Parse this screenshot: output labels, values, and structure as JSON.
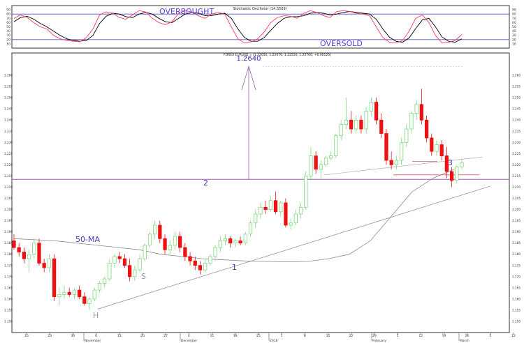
{
  "stochastic": {
    "title": "Stochastic Oscillator (14.5509)",
    "overbought_label": "OVERBOUGHT",
    "oversold_label": "OVERSOLD",
    "ticks": [
      "90",
      "80",
      "70",
      "60",
      "50",
      "40",
      "30",
      "20",
      "10"
    ],
    "overbought_level": 80,
    "oversold_level": 20,
    "colors": {
      "k": "#ff3b5c",
      "d": "#000000",
      "levels": "#5a4fd6",
      "label": "#5a3fd6"
    },
    "k_values": [
      70,
      78,
      72,
      60,
      50,
      45,
      30,
      22,
      18,
      16,
      15,
      25,
      45,
      78,
      85,
      82,
      72,
      68,
      78,
      88,
      85,
      70,
      60,
      55,
      62,
      82,
      88,
      85,
      76,
      70,
      80,
      84,
      80,
      50,
      22,
      12,
      15,
      22,
      38,
      60,
      72,
      76,
      75,
      70,
      82,
      88,
      84,
      76,
      72,
      86,
      88,
      86,
      82,
      80,
      76,
      50,
      25,
      14,
      12,
      18,
      40,
      70,
      78,
      60,
      30,
      12,
      14,
      18,
      32
    ],
    "d_values": [
      62,
      72,
      75,
      68,
      58,
      50,
      40,
      30,
      22,
      18,
      16,
      18,
      30,
      58,
      75,
      82,
      80,
      74,
      72,
      80,
      84,
      80,
      70,
      62,
      60,
      70,
      80,
      84,
      82,
      76,
      76,
      80,
      82,
      70,
      45,
      25,
      16,
      16,
      25,
      42,
      58,
      70,
      74,
      74,
      76,
      82,
      84,
      82,
      78,
      80,
      84,
      86,
      84,
      82,
      80,
      68,
      45,
      26,
      16,
      14,
      24,
      46,
      66,
      70,
      50,
      26,
      16,
      14,
      22
    ]
  },
  "main": {
    "title": "FOREX EURUSD = (1.22050, 1.22070, 1.22550, 1.22760, +0.00120)",
    "ylim": [
      1.145,
      1.27
    ],
    "y_ticks": [
      "1.260",
      "1.255",
      "1.250",
      "1.245",
      "1.240",
      "1.235",
      "1.230",
      "1.225",
      "1.220",
      "1.215",
      "1.210",
      "1.205",
      "1.200",
      "1.195",
      "1.190",
      "1.185",
      "1.180",
      "1.175",
      "1.170",
      "1.165",
      "1.160",
      "1.155",
      "1.150"
    ],
    "x_ticks": [
      "16",
      "23",
      "30",
      "6",
      "13",
      "20",
      "27",
      "4",
      "11",
      "18",
      "25",
      "1",
      "8",
      "15",
      "22",
      "29",
      "5",
      "12",
      "19",
      "26",
      "5",
      "12"
    ],
    "month_labels": [
      "November",
      "December",
      "2018",
      "February",
      "March"
    ],
    "annotations": {
      "target_price": "1.2640",
      "label_1": "1",
      "label_2": "2",
      "label_3": "3",
      "label_s": "S",
      "label_h": "H",
      "ma_label": "50-MA"
    },
    "colors": {
      "up": "#7ed87e",
      "down": "#ee1111",
      "annotation": "#4433bb",
      "trend": "#999999",
      "ma": "#8a8a8a",
      "grid_line": "#9a5fa8",
      "red_line": "#e85060"
    },
    "candles": [
      {
        "o": 1.186,
        "h": 1.189,
        "l": 1.182,
        "c": 1.183
      },
      {
        "o": 1.183,
        "h": 1.185,
        "l": 1.179,
        "c": 1.181
      },
      {
        "o": 1.181,
        "h": 1.183,
        "l": 1.176,
        "c": 1.178
      },
      {
        "o": 1.178,
        "h": 1.182,
        "l": 1.172,
        "c": 1.18
      },
      {
        "o": 1.18,
        "h": 1.187,
        "l": 1.178,
        "c": 1.185
      },
      {
        "o": 1.185,
        "h": 1.187,
        "l": 1.175,
        "c": 1.176
      },
      {
        "o": 1.176,
        "h": 1.178,
        "l": 1.172,
        "c": 1.174
      },
      {
        "o": 1.174,
        "h": 1.18,
        "l": 1.172,
        "c": 1.178
      },
      {
        "o": 1.178,
        "h": 1.18,
        "l": 1.159,
        "c": 1.161
      },
      {
        "o": 1.161,
        "h": 1.165,
        "l": 1.157,
        "c": 1.162
      },
      {
        "o": 1.162,
        "h": 1.166,
        "l": 1.16,
        "c": 1.163
      },
      {
        "o": 1.163,
        "h": 1.165,
        "l": 1.161,
        "c": 1.162
      },
      {
        "o": 1.162,
        "h": 1.165,
        "l": 1.16,
        "c": 1.164
      },
      {
        "o": 1.164,
        "h": 1.166,
        "l": 1.16,
        "c": 1.161
      },
      {
        "o": 1.161,
        "h": 1.163,
        "l": 1.157,
        "c": 1.158
      },
      {
        "o": 1.158,
        "h": 1.161,
        "l": 1.155,
        "c": 1.16
      },
      {
        "o": 1.16,
        "h": 1.165,
        "l": 1.159,
        "c": 1.164
      },
      {
        "o": 1.164,
        "h": 1.168,
        "l": 1.163,
        "c": 1.167
      },
      {
        "o": 1.167,
        "h": 1.17,
        "l": 1.165,
        "c": 1.169
      },
      {
        "o": 1.169,
        "h": 1.178,
        "l": 1.168,
        "c": 1.176
      },
      {
        "o": 1.176,
        "h": 1.18,
        "l": 1.174,
        "c": 1.179
      },
      {
        "o": 1.179,
        "h": 1.181,
        "l": 1.176,
        "c": 1.178
      },
      {
        "o": 1.178,
        "h": 1.18,
        "l": 1.174,
        "c": 1.175
      },
      {
        "o": 1.175,
        "h": 1.178,
        "l": 1.168,
        "c": 1.17
      },
      {
        "o": 1.17,
        "h": 1.175,
        "l": 1.168,
        "c": 1.173
      },
      {
        "o": 1.173,
        "h": 1.18,
        "l": 1.172,
        "c": 1.178
      },
      {
        "o": 1.178,
        "h": 1.185,
        "l": 1.177,
        "c": 1.184
      },
      {
        "o": 1.184,
        "h": 1.19,
        "l": 1.183,
        "c": 1.189
      },
      {
        "o": 1.189,
        "h": 1.195,
        "l": 1.187,
        "c": 1.193
      },
      {
        "o": 1.193,
        "h": 1.195,
        "l": 1.185,
        "c": 1.187
      },
      {
        "o": 1.187,
        "h": 1.189,
        "l": 1.18,
        "c": 1.182
      },
      {
        "o": 1.182,
        "h": 1.186,
        "l": 1.18,
        "c": 1.184
      },
      {
        "o": 1.184,
        "h": 1.19,
        "l": 1.182,
        "c": 1.188
      },
      {
        "o": 1.188,
        "h": 1.19,
        "l": 1.181,
        "c": 1.183
      },
      {
        "o": 1.183,
        "h": 1.185,
        "l": 1.177,
        "c": 1.179
      },
      {
        "o": 1.179,
        "h": 1.181,
        "l": 1.175,
        "c": 1.177
      },
      {
        "o": 1.177,
        "h": 1.179,
        "l": 1.173,
        "c": 1.175
      },
      {
        "o": 1.175,
        "h": 1.177,
        "l": 1.171,
        "c": 1.173
      },
      {
        "o": 1.173,
        "h": 1.178,
        "l": 1.172,
        "c": 1.176
      },
      {
        "o": 1.176,
        "h": 1.18,
        "l": 1.175,
        "c": 1.179
      },
      {
        "o": 1.179,
        "h": 1.184,
        "l": 1.177,
        "c": 1.183
      },
      {
        "o": 1.183,
        "h": 1.188,
        "l": 1.181,
        "c": 1.186
      },
      {
        "o": 1.186,
        "h": 1.189,
        "l": 1.184,
        "c": 1.187
      },
      {
        "o": 1.187,
        "h": 1.188,
        "l": 1.183,
        "c": 1.185
      },
      {
        "o": 1.185,
        "h": 1.187,
        "l": 1.183,
        "c": 1.186
      },
      {
        "o": 1.186,
        "h": 1.188,
        "l": 1.184,
        "c": 1.185
      },
      {
        "o": 1.185,
        "h": 1.19,
        "l": 1.184,
        "c": 1.189
      },
      {
        "o": 1.189,
        "h": 1.195,
        "l": 1.188,
        "c": 1.194
      },
      {
        "o": 1.194,
        "h": 1.2,
        "l": 1.192,
        "c": 1.198
      },
      {
        "o": 1.198,
        "h": 1.203,
        "l": 1.196,
        "c": 1.201
      },
      {
        "o": 1.201,
        "h": 1.204,
        "l": 1.198,
        "c": 1.2
      },
      {
        "o": 1.2,
        "h": 1.206,
        "l": 1.199,
        "c": 1.204
      },
      {
        "o": 1.204,
        "h": 1.208,
        "l": 1.198,
        "c": 1.199
      },
      {
        "o": 1.199,
        "h": 1.204,
        "l": 1.197,
        "c": 1.203
      },
      {
        "o": 1.203,
        "h": 1.205,
        "l": 1.192,
        "c": 1.193
      },
      {
        "o": 1.193,
        "h": 1.196,
        "l": 1.191,
        "c": 1.194
      },
      {
        "o": 1.194,
        "h": 1.2,
        "l": 1.193,
        "c": 1.198
      },
      {
        "o": 1.198,
        "h": 1.203,
        "l": 1.196,
        "c": 1.201
      },
      {
        "o": 1.201,
        "h": 1.217,
        "l": 1.2,
        "c": 1.215
      },
      {
        "o": 1.215,
        "h": 1.228,
        "l": 1.213,
        "c": 1.224
      },
      {
        "o": 1.224,
        "h": 1.226,
        "l": 1.216,
        "c": 1.218
      },
      {
        "o": 1.218,
        "h": 1.222,
        "l": 1.214,
        "c": 1.22
      },
      {
        "o": 1.22,
        "h": 1.224,
        "l": 1.219,
        "c": 1.223
      },
      {
        "o": 1.223,
        "h": 1.226,
        "l": 1.222,
        "c": 1.224
      },
      {
        "o": 1.224,
        "h": 1.234,
        "l": 1.223,
        "c": 1.233
      },
      {
        "o": 1.233,
        "h": 1.24,
        "l": 1.231,
        "c": 1.238
      },
      {
        "o": 1.238,
        "h": 1.25,
        "l": 1.236,
        "c": 1.24
      },
      {
        "o": 1.24,
        "h": 1.244,
        "l": 1.234,
        "c": 1.236
      },
      {
        "o": 1.236,
        "h": 1.242,
        "l": 1.234,
        "c": 1.24
      },
      {
        "o": 1.24,
        "h": 1.242,
        "l": 1.234,
        "c": 1.236
      },
      {
        "o": 1.236,
        "h": 1.246,
        "l": 1.234,
        "c": 1.244
      },
      {
        "o": 1.244,
        "h": 1.25,
        "l": 1.242,
        "c": 1.248
      },
      {
        "o": 1.248,
        "h": 1.25,
        "l": 1.238,
        "c": 1.24
      },
      {
        "o": 1.24,
        "h": 1.243,
        "l": 1.232,
        "c": 1.234
      },
      {
        "o": 1.234,
        "h": 1.236,
        "l": 1.22,
        "c": 1.222
      },
      {
        "o": 1.222,
        "h": 1.226,
        "l": 1.218,
        "c": 1.22
      },
      {
        "o": 1.22,
        "h": 1.224,
        "l": 1.218,
        "c": 1.222
      },
      {
        "o": 1.222,
        "h": 1.232,
        "l": 1.22,
        "c": 1.23
      },
      {
        "o": 1.23,
        "h": 1.238,
        "l": 1.228,
        "c": 1.236
      },
      {
        "o": 1.236,
        "h": 1.244,
        "l": 1.234,
        "c": 1.243
      },
      {
        "o": 1.243,
        "h": 1.249,
        "l": 1.24,
        "c": 1.247
      },
      {
        "o": 1.247,
        "h": 1.254,
        "l": 1.238,
        "c": 1.24
      },
      {
        "o": 1.24,
        "h": 1.242,
        "l": 1.23,
        "c": 1.232
      },
      {
        "o": 1.232,
        "h": 1.234,
        "l": 1.224,
        "c": 1.226
      },
      {
        "o": 1.226,
        "h": 1.231,
        "l": 1.224,
        "c": 1.229
      },
      {
        "o": 1.229,
        "h": 1.231,
        "l": 1.222,
        "c": 1.224
      },
      {
        "o": 1.224,
        "h": 1.228,
        "l": 1.214,
        "c": 1.217
      },
      {
        "o": 1.217,
        "h": 1.219,
        "l": 1.21,
        "c": 1.213
      },
      {
        "o": 1.213,
        "h": 1.22,
        "l": 1.212,
        "c": 1.219
      },
      {
        "o": 1.219,
        "h": 1.223,
        "l": 1.218,
        "c": 1.221
      }
    ]
  }
}
